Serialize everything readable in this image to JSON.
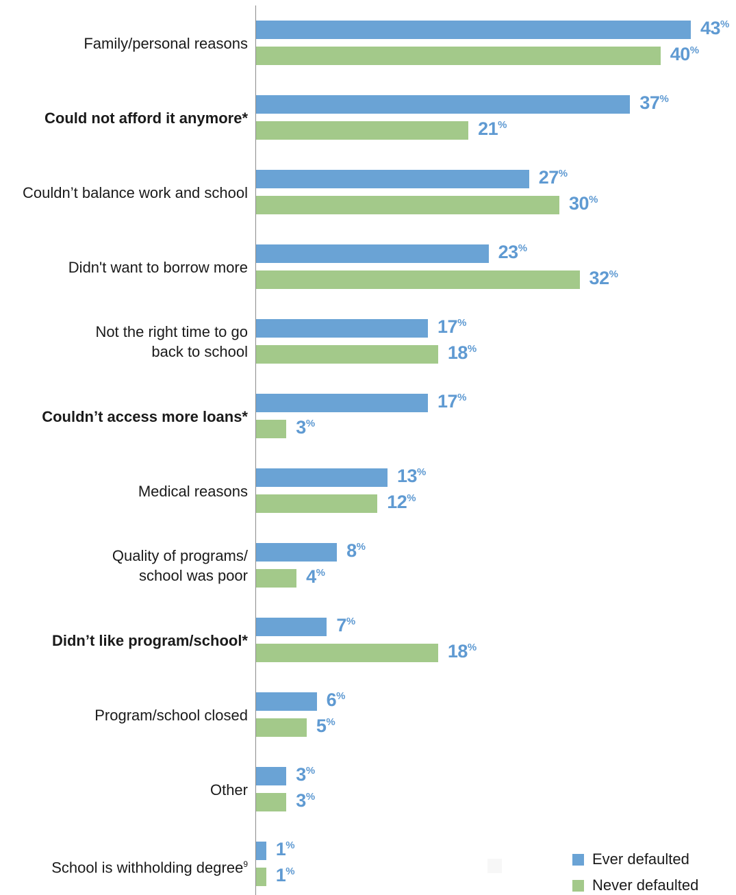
{
  "chart_data": {
    "type": "bar",
    "orientation": "horizontal",
    "categories": [
      {
        "label": "Family/personal reasons",
        "bold": false
      },
      {
        "label": "Could not afford it anymore*",
        "bold": true
      },
      {
        "label": "Couldn’t balance work and school",
        "bold": false
      },
      {
        "label": "Didn't want to borrow more",
        "bold": false
      },
      {
        "label": "Not the right time to go\nback to school",
        "bold": false
      },
      {
        "label": "Couldn’t access more loans*",
        "bold": true
      },
      {
        "label": "Medical reasons",
        "bold": false
      },
      {
        "label": "Quality of programs/\nschool was poor",
        "bold": false
      },
      {
        "label": "Didn’t like program/school*",
        "bold": true
      },
      {
        "label": "Program/school closed",
        "bold": false
      },
      {
        "label": "Other",
        "bold": false
      },
      {
        "label": "School is withholding degree",
        "bold": false,
        "footnote": "9"
      }
    ],
    "series": [
      {
        "name": "Ever defaulted",
        "color": "#6aa3d5",
        "values": [
          43,
          37,
          27,
          23,
          17,
          17,
          13,
          8,
          7,
          6,
          3,
          1
        ]
      },
      {
        "name": "Never defaulted",
        "color": "#a3c98a",
        "values": [
          40,
          21,
          30,
          32,
          18,
          3,
          12,
          4,
          18,
          5,
          3,
          1
        ]
      }
    ],
    "value_suffix": "%",
    "xlim": [
      0,
      43
    ],
    "legend_position": "bottom-right",
    "grid": false
  }
}
